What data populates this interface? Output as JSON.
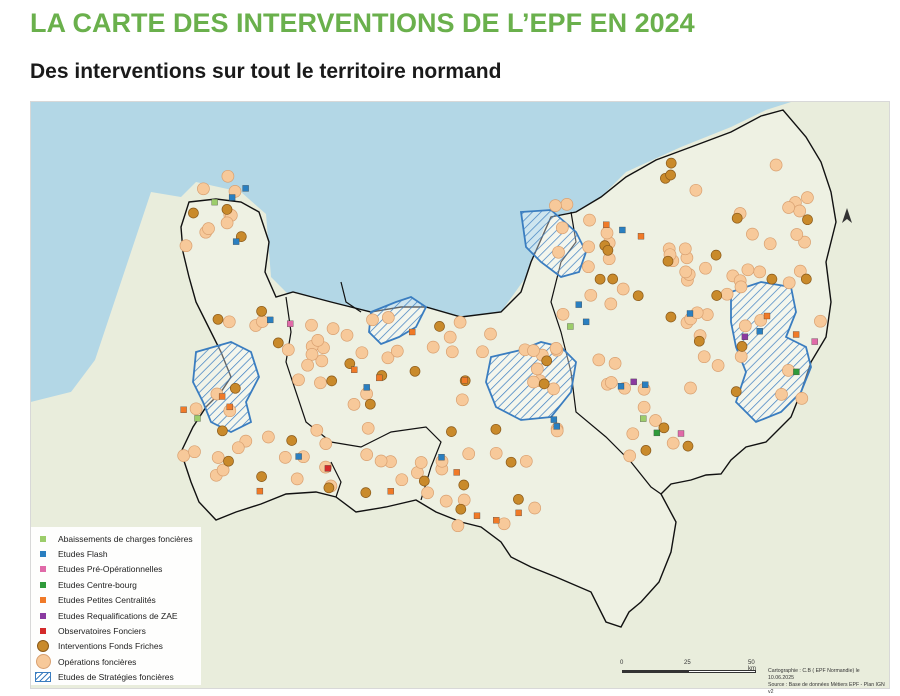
{
  "header": {
    "title": "LA CARTE DES INTERVENTIONS DE L’EPF EN 2024",
    "subtitle": "Des interventions sur tout le territoire normand"
  },
  "colors": {
    "title_green": "#6ab04c",
    "sea": "#b3d7e6",
    "land_north": "#e6ecd8",
    "land_south": "#edf0e2",
    "boundary": "#111111",
    "strategy_blue": "#3a7dc0",
    "friches": "#c98a2b",
    "operations": "#f7c99a"
  },
  "legend": {
    "items": [
      {
        "label": "Abaissements de charges foncières",
        "color": "#9ccd6a",
        "icon": "light-green-square-icon",
        "shape": "square"
      },
      {
        "label": "Etudes Flash",
        "color": "#2a7fc0",
        "icon": "blue-square-icon",
        "shape": "square"
      },
      {
        "label": "Etudes Pré-Opérationnelles",
        "color": "#e06aa8",
        "icon": "pink-square-icon",
        "shape": "square"
      },
      {
        "label": "Etudes Centre-bourg",
        "color": "#2f9a3a",
        "icon": "green-square-icon",
        "shape": "square"
      },
      {
        "label": "Etudes Petites Centralités",
        "color": "#f07a28",
        "icon": "orange-square-icon",
        "shape": "square"
      },
      {
        "label": "Etudes Requalifications de ZAE",
        "color": "#8a3aa0",
        "icon": "purple-square-icon",
        "shape": "square"
      },
      {
        "label": "Observatoires Fonciers",
        "color": "#d42a2a",
        "icon": "red-square-icon",
        "shape": "square"
      },
      {
        "label": "Interventions Fonds Friches",
        "color": "#c98a2b",
        "icon": "dark-orange-circle-icon",
        "shape": "circle"
      },
      {
        "label": "Opérations foncières",
        "color": "#f7c99a",
        "icon": "light-orange-circle-icon",
        "shape": "circle"
      },
      {
        "label": "Etudes de Stratégies foncières",
        "color": "#3a7dc0",
        "icon": "blue-hatched-area-icon",
        "shape": "hatch"
      }
    ]
  },
  "scale": {
    "ticks": [
      "0",
      "25",
      "50 km"
    ]
  },
  "credits": {
    "line1": "Cartographie : C.B ( EPF Normandie) le 10.06.2025",
    "line2": "Source : Base de données Métiers EPF - Plan IGN v2"
  },
  "map": {
    "north_arrow": "north-arrow-icon"
  }
}
